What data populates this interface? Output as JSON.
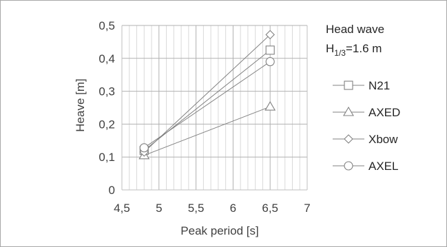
{
  "chart_data": {
    "type": "scatter",
    "xlabel": "Peak period [s]",
    "ylabel": "Heave [m]",
    "xlim": [
      4.5,
      7
    ],
    "ylim": [
      0,
      0.5
    ],
    "xticks": [
      4.5,
      5,
      5.5,
      6,
      6.5,
      7
    ],
    "yticks": [
      0,
      0.1,
      0.2,
      0.3,
      0.4,
      0.5
    ],
    "xtick_labels": [
      "4,5",
      "5",
      "5,5",
      "6",
      "6,5",
      "7"
    ],
    "ytick_labels": [
      "0",
      "0,1",
      "0,2",
      "0,3",
      "0,4",
      "0,5"
    ],
    "grid": true,
    "minor_x_grid_step": 0.1,
    "legend_position": "right",
    "annotation": {
      "line1": "Head wave",
      "line2_main": "H",
      "line2_sub": "1/3",
      "line2_rest": "=1.6 m"
    },
    "series": [
      {
        "name": "N21",
        "marker": "square",
        "x": [
          4.8,
          6.5
        ],
        "y": [
          0.12,
          0.425
        ]
      },
      {
        "name": "AXED",
        "marker": "triangle",
        "x": [
          4.8,
          6.5
        ],
        "y": [
          0.105,
          0.253
        ]
      },
      {
        "name": "Xbow",
        "marker": "diamond",
        "x": [
          4.8,
          6.5
        ],
        "y": [
          0.115,
          0.472
        ]
      },
      {
        "name": "AXEL",
        "marker": "circle",
        "x": [
          4.8,
          6.5
        ],
        "y": [
          0.128,
          0.39
        ]
      }
    ],
    "colors": {
      "line": "#808080",
      "marker": "#808080",
      "grid": "#d9d9d9",
      "axis": "#bfbfbf"
    }
  }
}
